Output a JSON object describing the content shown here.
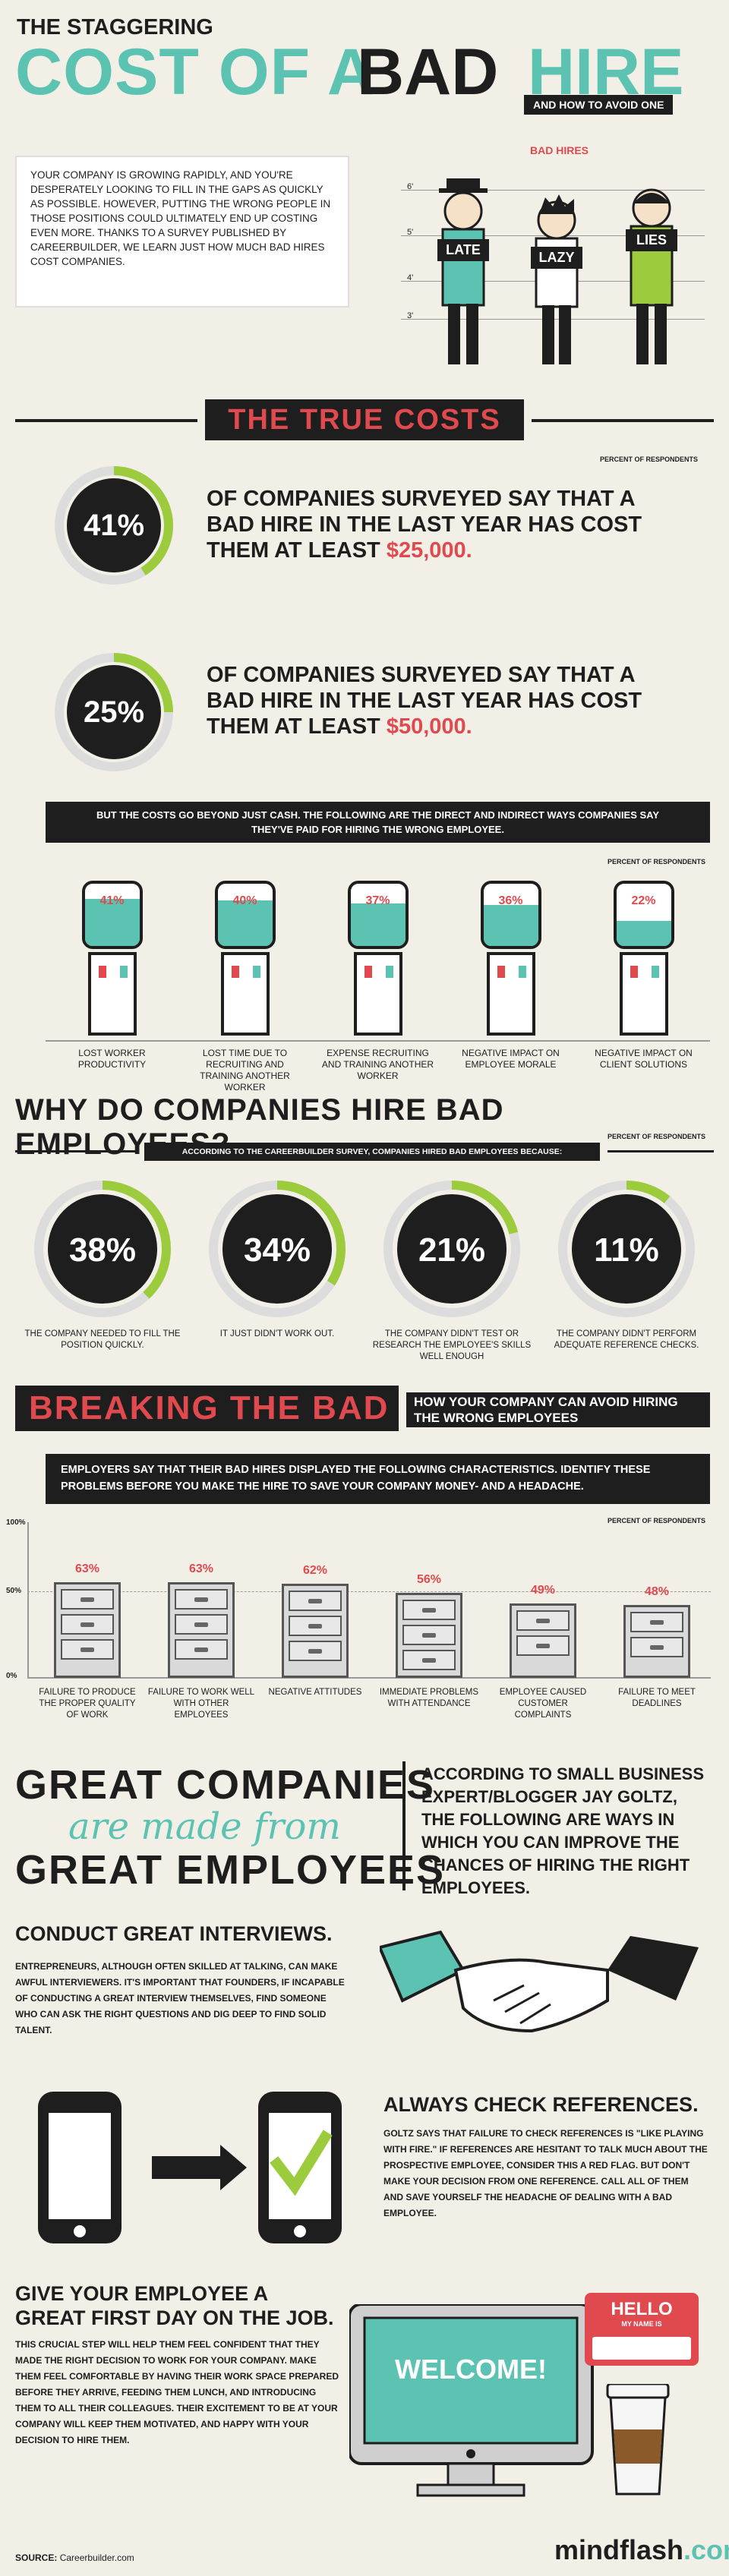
{
  "title": {
    "line1": "THE STAGGERING",
    "word_cost": "COST OF A",
    "word_bad": "BAD",
    "word_hire": "HIRE",
    "tagline": "AND HOW TO AVOID ONE"
  },
  "intro": "YOUR COMPANY IS GROWING RAPIDLY, AND YOU'RE DESPERATELY LOOKING TO FILL IN THE GAPS AS QUICKLY AS POSSIBLE. HOWEVER, PUTTING THE WRONG PEOPLE IN THOSE POSITIONS COULD ULTIMATELY END UP COSTING EVEN MORE. THANKS TO A SURVEY PUBLISHED BY CAREERBUILDER, WE LEARN JUST HOW MUCH BAD HIRES COST COMPANIES.",
  "lineup": {
    "label": "BAD HIRES",
    "heights": [
      "6'",
      "5'",
      "4'",
      "3'"
    ],
    "signs": [
      "LATE",
      "LAZY",
      "LIES"
    ]
  },
  "true_costs": {
    "heading": "THE TRUE COSTS",
    "note": "PERCENT OF RESPONDENTS",
    "stats": [
      {
        "pct": "41%",
        "value": 41,
        "text": "OF COMPANIES SURVEYED SAY THAT A BAD HIRE IN THE LAST YEAR HAS COST THEM AT LEAST",
        "amount": "$25,000."
      },
      {
        "pct": "25%",
        "value": 25,
        "text": "OF COMPANIES SURVEYED SAY THAT A BAD HIRE IN THE LAST YEAR HAS COST THEM AT LEAST",
        "amount": "$50,000."
      }
    ]
  },
  "beyond_cash": {
    "banner": "BUT THE COSTS GO BEYOND JUST CASH. THE FOLLOWING ARE THE DIRECT AND INDIRECT WAYS COMPANIES SAY THEY'VE PAID FOR HIRING THE WRONG EMPLOYEE.",
    "note": "PERCENT OF RESPONDENTS",
    "items": [
      {
        "pct": "41%",
        "value": 41,
        "label": "LOST WORKER PRODUCTIVITY"
      },
      {
        "pct": "40%",
        "value": 40,
        "label": "LOST TIME DUE TO RECRUITING AND TRAINING ANOTHER WORKER"
      },
      {
        "pct": "37%",
        "value": 37,
        "label": "EXPENSE RECRUITING AND TRAINING ANOTHER WORKER"
      },
      {
        "pct": "36%",
        "value": 36,
        "label": "NEGATIVE IMPACT ON EMPLOYEE MORALE"
      },
      {
        "pct": "22%",
        "value": 22,
        "label": "NEGATIVE IMPACT ON CLIENT SOLUTIONS"
      }
    ]
  },
  "why": {
    "heading": "WHY DO COMPANIES HIRE BAD EMPLOYEES?",
    "note": "PERCENT OF RESPONDENTS",
    "banner": "ACCORDING TO THE CAREERBUILDER SURVEY, COMPANIES HIRED BAD EMPLOYEES BECAUSE:",
    "items": [
      {
        "pct": "38%",
        "value": 38,
        "label": "THE COMPANY NEEDED TO FILL THE POSITION QUICKLY."
      },
      {
        "pct": "34%",
        "value": 34,
        "label": "IT JUST DIDN'T WORK OUT."
      },
      {
        "pct": "21%",
        "value": 21,
        "label": "THE COMPANY DIDN'T TEST OR RESEARCH THE EMPLOYEE'S SKILLS WELL ENOUGH"
      },
      {
        "pct": "11%",
        "value": 11,
        "label": "THE COMPANY DIDN'T PERFORM ADEQUATE REFERENCE CHECKS."
      }
    ]
  },
  "breaking": {
    "heading": "BREAKING THE BAD",
    "sub": "HOW YOUR COMPANY CAN AVOID HIRING THE WRONG EMPLOYEES",
    "banner": "EMPLOYERS SAY THAT THEIR BAD HIRES DISPLAYED THE FOLLOWING CHARACTERISTICS. IDENTIFY THESE PROBLEMS BEFORE YOU MAKE THE HIRE TO SAVE YOUR COMPANY MONEY- AND A HEADACHE.",
    "note": "PERCENT OF RESPONDENTS",
    "axis": [
      "100%",
      "50%",
      "0%"
    ],
    "items": [
      {
        "pct": "63%",
        "value": 63,
        "label": "FAILURE TO PRODUCE THE PROPER QUALITY OF WORK"
      },
      {
        "pct": "63%",
        "value": 63,
        "label": "FAILURE TO WORK WELL WITH OTHER EMPLOYEES"
      },
      {
        "pct": "62%",
        "value": 62,
        "label": "NEGATIVE ATTITUDES"
      },
      {
        "pct": "56%",
        "value": 56,
        "label": "IMMEDIATE PROBLEMS WITH ATTENDANCE"
      },
      {
        "pct": "49%",
        "value": 49,
        "label": "EMPLOYEE CAUSED CUSTOMER COMPLAINTS"
      },
      {
        "pct": "48%",
        "value": 48,
        "label": "FAILURE TO MEET DEADLINES"
      }
    ]
  },
  "great": {
    "line1": "GREAT COMPANIES",
    "line2": "are made from",
    "line3": "GREAT EMPLOYEES",
    "quote": "ACCORDING TO SMALL BUSINESS EXPERT/BLOGGER JAY GOLTZ, THE FOLLOWING ARE WAYS IN WHICH YOU CAN IMPROVE THE CHANCES OF HIRING THE RIGHT EMPLOYEES."
  },
  "tips": [
    {
      "heading": "CONDUCT GREAT INTERVIEWS.",
      "body": "ENTREPRENEURS, ALTHOUGH OFTEN SKILLED AT TALKING, CAN MAKE AWFUL INTERVIEWERS. IT'S IMPORTANT THAT FOUNDERS, IF INCAPABLE OF CONDUCTING A GREAT INTERVIEW THEMSELVES, FIND SOMEONE WHO CAN ASK THE RIGHT QUESTIONS AND DIG DEEP TO FIND SOLID TALENT."
    },
    {
      "heading": "ALWAYS CHECK REFERENCES.",
      "body": "GOLTZ SAYS THAT FAILURE TO CHECK REFERENCES IS \"LIKE PLAYING WITH FIRE.\" IF REFERENCES ARE HESITANT TO TALK MUCH ABOUT THE PROSPECTIVE EMPLOYEE, CONSIDER THIS A RED FLAG. BUT DON'T MAKE YOUR DECISION FROM ONE REFERENCE. CALL ALL OF THEM AND SAVE YOURSELF THE HEADACHE OF DEALING WITH A BAD EMPLOYEE."
    },
    {
      "heading": "GIVE YOUR EMPLOYEE A GREAT FIRST DAY ON THE JOB.",
      "body": "THIS CRUCIAL STEP WILL HELP THEM FEEL CONFIDENT THAT THEY MADE THE RIGHT DECISION TO WORK FOR YOUR COMPANY. MAKE THEM FEEL COMFORTABLE BY HAVING THEIR WORK SPACE PREPARED BEFORE THEY ARRIVE, FEEDING THEM LUNCH, AND INTRODUCING THEM TO ALL THEIR COLLEAGUES. THEIR EXCITEMENT TO BE AT YOUR COMPANY WILL KEEP THEM MOTIVATED, AND HAPPY WITH YOUR DECISION TO HIRE THEM."
    }
  ],
  "welcome": {
    "screen": "WELCOME!",
    "hello": "HELLO",
    "name_tag": "MY NAME IS"
  },
  "footer": {
    "source_label": "SOURCE:",
    "source": "Careerbuilder.com",
    "brand_a": "mindflash",
    "brand_b": ".com"
  },
  "colors": {
    "teal": "#5cc3b2",
    "red": "#e04a4f",
    "green": "#9ccc3d",
    "ink": "#1e1e1e"
  }
}
